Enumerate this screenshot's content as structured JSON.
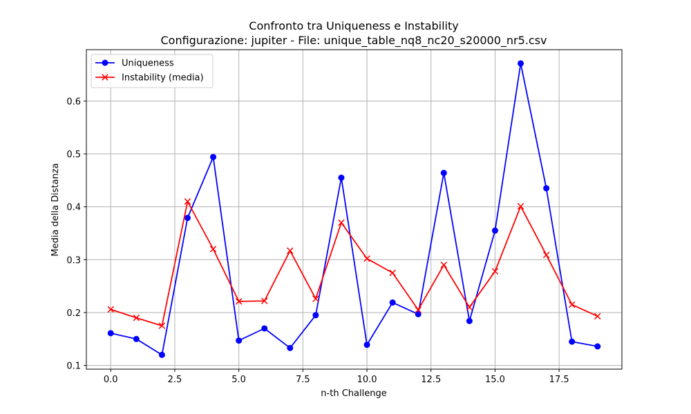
{
  "chart_data": {
    "type": "line",
    "title": "Confronto tra Uniqueness e Instability",
    "subtitle": "Configurazione: jupiter - File: unique_table_nq8_nc20_s20000_nr5.csv",
    "xlabel": "n-th Challenge",
    "ylabel": "Media della Distanza",
    "xlim": [
      -0.95,
      19.95
    ],
    "ylim": [
      0.093,
      0.697
    ],
    "x_ticks": [
      0.0,
      2.5,
      5.0,
      7.5,
      10.0,
      12.5,
      15.0,
      17.5
    ],
    "x_tick_labels": [
      "0.0",
      "2.5",
      "5.0",
      "7.5",
      "10.0",
      "12.5",
      "15.0",
      "17.5"
    ],
    "y_ticks": [
      0.1,
      0.2,
      0.3,
      0.4,
      0.5,
      0.6
    ],
    "y_tick_labels": [
      "0.1",
      "0.2",
      "0.3",
      "0.4",
      "0.5",
      "0.6"
    ],
    "grid": true,
    "legend_position": "top-left",
    "x": [
      0,
      1,
      2,
      3,
      4,
      5,
      6,
      7,
      8,
      9,
      10,
      11,
      12,
      13,
      14,
      15,
      16,
      17,
      18,
      19
    ],
    "series": [
      {
        "name": "Uniqueness",
        "color": "#0000ff",
        "marker": "circle",
        "values": [
          0.161,
          0.15,
          0.12,
          0.379,
          0.494,
          0.147,
          0.17,
          0.133,
          0.195,
          0.455,
          0.139,
          0.219,
          0.197,
          0.464,
          0.184,
          0.355,
          0.671,
          0.435,
          0.145,
          0.136
        ]
      },
      {
        "name": "Instability (media)",
        "color": "#ff0000",
        "marker": "x",
        "values": [
          0.206,
          0.19,
          0.175,
          0.41,
          0.32,
          0.221,
          0.222,
          0.317,
          0.226,
          0.37,
          0.302,
          0.275,
          0.205,
          0.29,
          0.21,
          0.278,
          0.401,
          0.309,
          0.215,
          0.193
        ]
      }
    ]
  }
}
